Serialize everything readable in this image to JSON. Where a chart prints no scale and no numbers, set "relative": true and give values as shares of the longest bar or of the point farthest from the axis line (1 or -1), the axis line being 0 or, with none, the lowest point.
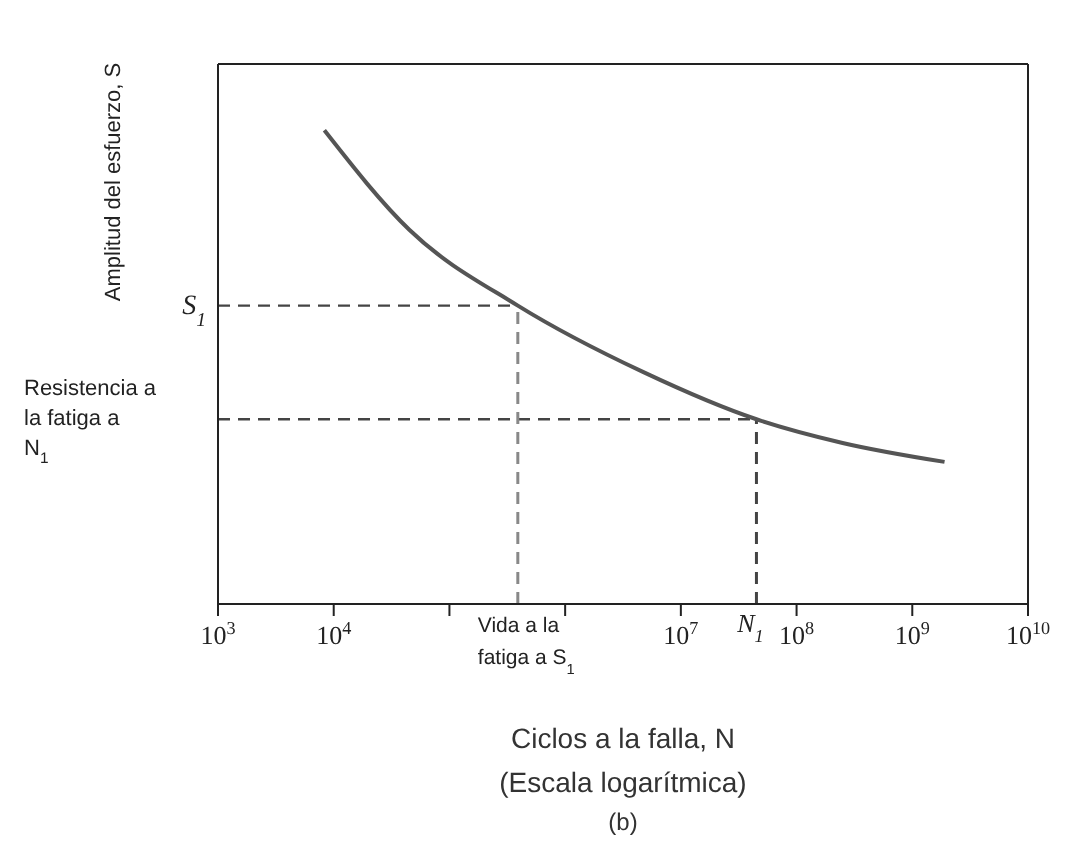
{
  "chart_data": {
    "type": "line",
    "relative": true,
    "xlabel": "Ciclos a la falla, N\n(Escala logarítmica)",
    "ylabel": "Amplitud del esfuerzo, S",
    "annotations": [
      "(b)"
    ],
    "log": "x",
    "xlim": [
      1000,
      10000000000
    ],
    "xticks": [
      {
        "value": 1000,
        "label": "10$^{3}$"
      },
      {
        "value": 10000,
        "label": "10$^{4}$"
      },
      {
        "value": 100000,
        "label": null
      },
      {
        "value": 1000000,
        "label": null
      },
      {
        "value": 10000000,
        "label": "10$^{7}$"
      },
      {
        "value": 100000000,
        "label": "10$^{8}$"
      },
      {
        "value": 1000000000,
        "label": "10$^{9}$"
      },
      {
        "value": 10000000000,
        "label": "10$^{10}$"
      }
    ],
    "x": [
      8300,
      45000,
      390000,
      4700000,
      45000000,
      250000000,
      1900000000
    ],
    "series": [
      {
        "color": "#555555",
        "values": [
          1,
          0.79,
          0.63,
          0.49,
          0.39,
          0.34,
          0.3
        ]
      }
    ],
    "marker": "none",
    "line_style": "solid",
    "ref_lines": [
      {
        "axis": "y",
        "value": 0.63,
        "label": "S$_{1}$",
        "line_style": "dashed",
        "color": "#444444"
      },
      {
        "axis": "y",
        "value": 0.39,
        "label": "Resistencia a la fatiga a N$_{1}$",
        "line_style": "dashed",
        "color": "#444444"
      },
      {
        "axis": "x",
        "value": 390000,
        "label": "Vida a la fatiga a S$_{1}$",
        "line_style": "dashed",
        "color": "#888888"
      },
      {
        "axis": "x",
        "value": 45000000,
        "label": "N$_{1}$",
        "line_style": "dashed",
        "color": "#444444"
      }
    ]
  }
}
